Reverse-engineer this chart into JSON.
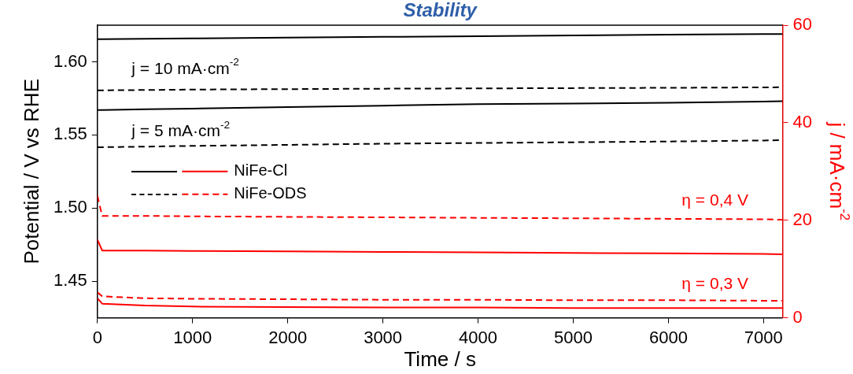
{
  "chart_data": {
    "type": "line",
    "title": "Stability",
    "xlabel": "Time / s",
    "ylabel": "Potential / V vs RHE",
    "y2label": "j / mA·cm$^{-2}$",
    "x": [
      0,
      50,
      500,
      1000,
      2000,
      3000,
      4000,
      5000,
      6000,
      7000,
      7200
    ],
    "xlim": [
      0,
      7200
    ],
    "xticks": [
      0,
      1000,
      2000,
      3000,
      4000,
      5000,
      6000,
      7000
    ],
    "ylim": [
      1.425,
      1.625
    ],
    "yticks": [
      {
        "value": 1.45,
        "label": "1.45"
      },
      {
        "value": 1.5,
        "label": "1.50"
      },
      {
        "value": 1.55,
        "label": "1.55"
      },
      {
        "value": 1.6,
        "label": "1.60"
      }
    ],
    "y2lim": [
      0,
      60
    ],
    "y2ticks": [
      0,
      20,
      40,
      60
    ],
    "grid": false,
    "legend": "left",
    "marker": "none",
    "series": [
      {
        "color": "#000000",
        "line_style": "solid",
        "values": [
          1.6155,
          1.6155,
          1.6157,
          1.616,
          1.6165,
          1.617,
          1.6175,
          1.618,
          1.6185,
          1.619,
          1.619
        ]
      },
      {
        "color": "#000000",
        "line_style": "dashed",
        "values": [
          1.5805,
          1.5805,
          1.5807,
          1.581,
          1.5813,
          1.5816,
          1.5818,
          1.582,
          1.5822,
          1.5825,
          1.5826
        ]
      },
      {
        "color": "#000000",
        "line_style": "solid",
        "values": [
          1.567,
          1.567,
          1.5675,
          1.568,
          1.569,
          1.57,
          1.571,
          1.5715,
          1.572,
          1.5728,
          1.573
        ]
      },
      {
        "color": "#000000",
        "line_style": "dashed",
        "values": [
          1.5416,
          1.5416,
          1.542,
          1.5425,
          1.5432,
          1.544,
          1.5445,
          1.545,
          1.5455,
          1.5462,
          1.5465
        ]
      },
      {
        "name": "NiFe-Cl",
        "color": "#ff0000",
        "line_style": "solid",
        "axis": "y2",
        "values": [
          4,
          2.9,
          2.5,
          2.3,
          2.2,
          2.1,
          2.1,
          2,
          2,
          2,
          2
        ]
      },
      {
        "name": "NiFe-ODS",
        "color": "#ff0000",
        "line_style": "dashed",
        "axis": "y2",
        "values": [
          5.2,
          4.4,
          4,
          3.9,
          3.8,
          3.7,
          3.7,
          3.6,
          3.6,
          3.5,
          3.5
        ]
      },
      {
        "color": "#ff0000",
        "line_style": "solid",
        "axis": "y2",
        "values": [
          16,
          13.8,
          13.8,
          13.7,
          13.6,
          13.5,
          13.4,
          13.3,
          13.2,
          13.1,
          13
        ]
      },
      {
        "color": "#ff0000",
        "line_style": "dashed",
        "axis": "y2",
        "values": [
          25,
          20.9,
          20.9,
          20.8,
          20.7,
          20.6,
          20.5,
          20.4,
          20.3,
          20.2,
          20.1
        ]
      }
    ],
    "annotations": [
      "j = 10 mA·cm$^{-2}$",
      "j = 5 mA·cm$^{-2}$",
      "η = 0,4 V",
      "η = 0,3 V"
    ]
  }
}
